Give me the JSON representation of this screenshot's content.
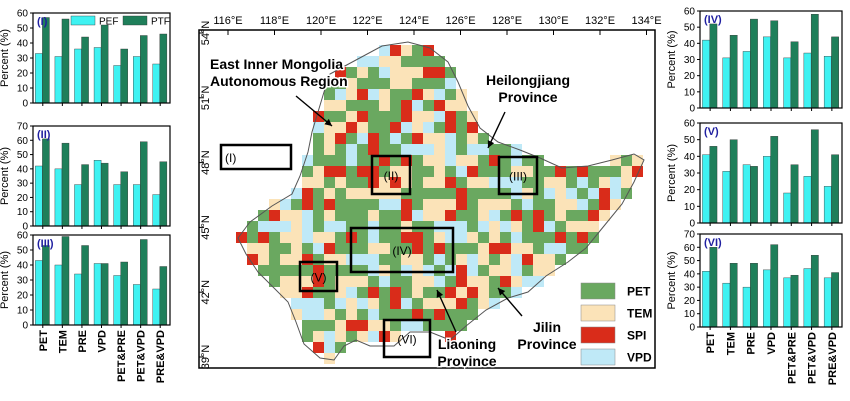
{
  "legend_bars": {
    "pef": "PEF",
    "ptf": "PTF"
  },
  "colors": {
    "pef": "#3ff2f2",
    "ptf": "#1f7f5a",
    "PET": "#6aa860",
    "TEM": "#fbe3b8",
    "SPI": "#d92c1a",
    "VPD": "#bfe9f7",
    "region_label": "#1f1fa0"
  },
  "bar_categories": [
    "PET",
    "TEM",
    "PRE",
    "VPD",
    "PET&PRE",
    "PET&VPD",
    "PRE&VPD"
  ],
  "bar_ylabel": "Percent (%)",
  "chart_data": [
    {
      "type": "bar",
      "panel": "(I)",
      "side": "left",
      "categories": [
        "PET",
        "TEM",
        "PRE",
        "VPD",
        "PET&PRE",
        "PET&VPD",
        "PRE&VPD"
      ],
      "ylabel": "Percent (%)",
      "ylim": [
        0,
        60
      ],
      "yticks": [
        0,
        10,
        20,
        30,
        40,
        50,
        60
      ],
      "legend": "top-right",
      "series": [
        {
          "name": "PEF",
          "values": [
            33,
            31,
            36,
            37,
            25,
            31,
            26
          ]
        },
        {
          "name": "PTF",
          "values": [
            57,
            56,
            44,
            52,
            36,
            45,
            46
          ]
        }
      ]
    },
    {
      "type": "bar",
      "panel": "(II)",
      "side": "left",
      "categories": [
        "PET",
        "TEM",
        "PRE",
        "VPD",
        "PET&PRE",
        "PET&VPD",
        "PRE&VPD"
      ],
      "ylabel": "Percent (%)",
      "ylim": [
        0,
        70
      ],
      "yticks": [
        0,
        10,
        20,
        30,
        40,
        50,
        60,
        70
      ],
      "series": [
        {
          "name": "PEF",
          "values": [
            42,
            40,
            29,
            46,
            29,
            29,
            22
          ]
        },
        {
          "name": "PTF",
          "values": [
            61,
            58,
            43,
            44,
            38,
            59,
            45
          ]
        }
      ]
    },
    {
      "type": "bar",
      "panel": "(III)",
      "side": "left",
      "categories": [
        "PET",
        "TEM",
        "PRE",
        "VPD",
        "PET&PRE",
        "PET&VPD",
        "PRE&VPD"
      ],
      "ylabel": "Percent (%)",
      "ylim": [
        0,
        60
      ],
      "yticks": [
        0,
        10,
        20,
        30,
        40,
        50,
        60
      ],
      "series": [
        {
          "name": "PEF",
          "values": [
            43,
            40,
            34,
            41,
            33,
            27,
            24
          ]
        },
        {
          "name": "PTF",
          "values": [
            53,
            59,
            53,
            41,
            42,
            57,
            39
          ]
        }
      ]
    },
    {
      "type": "bar",
      "panel": "(IV)",
      "side": "right",
      "categories": [
        "PET",
        "TEM",
        "PRE",
        "VPD",
        "PET&PRE",
        "PET&VPD",
        "PRE&VPD"
      ],
      "ylabel": "Percent (%)",
      "ylim": [
        0,
        60
      ],
      "yticks": [
        0,
        10,
        20,
        30,
        40,
        50,
        60
      ],
      "series": [
        {
          "name": "PEF",
          "values": [
            42,
            31,
            35,
            44,
            31,
            34,
            32
          ]
        },
        {
          "name": "PTF",
          "values": [
            52,
            45,
            55,
            54,
            41,
            58,
            44
          ]
        }
      ]
    },
    {
      "type": "bar",
      "panel": "(V)",
      "side": "right",
      "categories": [
        "PET",
        "TEM",
        "PRE",
        "VPD",
        "PET&PRE",
        "PET&VPD",
        "PRE&VPD"
      ],
      "ylabel": "Percent (%)",
      "ylim": [
        0,
        60
      ],
      "yticks": [
        0,
        10,
        20,
        30,
        40,
        50,
        60
      ],
      "series": [
        {
          "name": "PEF",
          "values": [
            41,
            31,
            35,
            40,
            18,
            28,
            22
          ]
        },
        {
          "name": "PTF",
          "values": [
            46,
            50,
            34,
            52,
            35,
            56,
            41
          ]
        }
      ]
    },
    {
      "type": "bar",
      "panel": "(VI)",
      "side": "right",
      "categories": [
        "PET",
        "TEM",
        "PRE",
        "VPD",
        "PET&PRE",
        "PET&VPD",
        "PRE&VPD"
      ],
      "ylabel": "Percent (%)",
      "ylim": [
        0,
        70
      ],
      "yticks": [
        0,
        10,
        20,
        30,
        40,
        50,
        60,
        70
      ],
      "series": [
        {
          "name": "PEF",
          "values": [
            42,
            33,
            30,
            43,
            37,
            44,
            37
          ]
        },
        {
          "name": "PTF",
          "values": [
            60,
            48,
            48,
            62,
            39,
            54,
            41
          ]
        }
      ]
    }
  ],
  "map": {
    "lon_ticks": [
      "116°E",
      "118°E",
      "120°E",
      "122°E",
      "124°E",
      "126°E",
      "128°E",
      "130°E",
      "132°E",
      "134°E"
    ],
    "lat_ticks": [
      "54°N",
      "51°N",
      "48°N",
      "45°N",
      "42°N",
      "39°N"
    ],
    "legend": [
      "PET",
      "TEM",
      "SPI",
      "VPD"
    ],
    "region_boxes": [
      "(I)",
      "(II)",
      "(III)",
      "(IV)",
      "(V)",
      "(VI)"
    ],
    "annotations": {
      "inner_mongolia": [
        "East Inner Mongolia",
        "Autonomous Region"
      ],
      "heilongjiang": [
        "Heilongjiang",
        "Province"
      ],
      "jilin": [
        "Jilin",
        "Province"
      ],
      "liaoning": [
        "Liaoning",
        "Province"
      ]
    }
  }
}
